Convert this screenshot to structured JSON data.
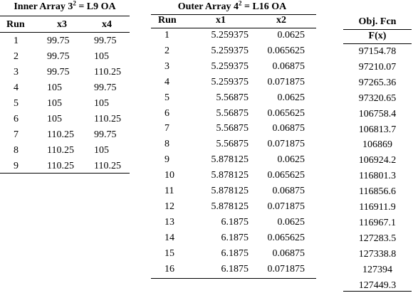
{
  "inner": {
    "title": {
      "text": "Inner Array 3",
      "sup": "2",
      "rest": " = L9 OA"
    },
    "headers": [
      "Run",
      "x3",
      "x4"
    ],
    "rows": [
      [
        "1",
        "99.75",
        "99.75"
      ],
      [
        "2",
        "99.75",
        "105"
      ],
      [
        "3",
        "99.75",
        "110.25"
      ],
      [
        "4",
        "105",
        "99.75"
      ],
      [
        "5",
        "105",
        "105"
      ],
      [
        "6",
        "105",
        "110.25"
      ],
      [
        "7",
        "110.25",
        "99.75"
      ],
      [
        "8",
        "110.25",
        "105"
      ],
      [
        "9",
        "110.25",
        "110.25"
      ]
    ]
  },
  "outer": {
    "title": {
      "text": "Outer Array 4",
      "sup": "2",
      "rest": " = L16 OA"
    },
    "headers": [
      "Run",
      "x1",
      "x2"
    ],
    "rows": [
      [
        "1",
        "5.259375",
        "0.0625"
      ],
      [
        "2",
        "5.259375",
        "0.065625"
      ],
      [
        "3",
        "5.259375",
        "0.06875"
      ],
      [
        "4",
        "5.259375",
        "0.071875"
      ],
      [
        "5",
        "5.56875",
        "0.0625"
      ],
      [
        "6",
        "5.56875",
        "0.065625"
      ],
      [
        "7",
        "5.56875",
        "0.06875"
      ],
      [
        "8",
        "5.56875",
        "0.071875"
      ],
      [
        "9",
        "5.878125",
        "0.0625"
      ],
      [
        "10",
        "5.878125",
        "0.065625"
      ],
      [
        "11",
        "5.878125",
        "0.06875"
      ],
      [
        "12",
        "5.878125",
        "0.071875"
      ],
      [
        "13",
        "6.1875",
        "0.0625"
      ],
      [
        "14",
        "6.1875",
        "0.065625"
      ],
      [
        "15",
        "6.1875",
        "0.06875"
      ],
      [
        "16",
        "6.1875",
        "0.071875"
      ]
    ]
  },
  "objective": {
    "title": "Obj. Fcn",
    "header": "F(x)",
    "values": [
      "97154.78",
      "97210.07",
      "97265.36",
      "97320.65",
      "106758.4",
      "106813.7",
      "106869",
      "106924.2",
      "116801.3",
      "116856.6",
      "116911.9",
      "116967.1",
      "127283.5",
      "127338.8",
      "127394",
      "127449.3"
    ]
  }
}
